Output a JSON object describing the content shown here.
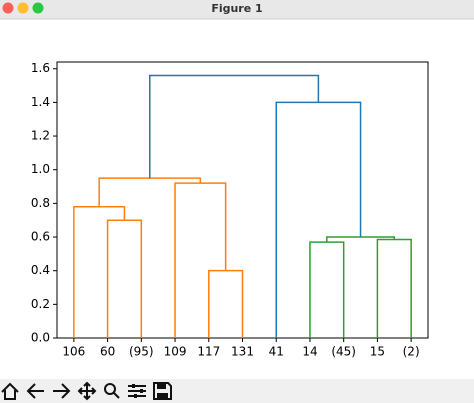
{
  "window_title": "Figure 1",
  "chart_data": {
    "type": "dendrogram",
    "categories": [
      "106",
      "60",
      "(95)",
      "109",
      "117",
      "131",
      "41",
      "14",
      "(45)",
      "15",
      "(2)"
    ],
    "links": [
      {
        "children": [
          4,
          5
        ],
        "height": 0.4,
        "color": "#ff7f0e"
      },
      {
        "children": [
          1,
          2
        ],
        "height": 0.7,
        "color": "#ff7f0e"
      },
      {
        "children": [
          0,
          12
        ],
        "height": 0.78,
        "color": "#ff7f0e"
      },
      {
        "children": [
          3,
          11
        ],
        "height": 0.92,
        "color": "#ff7f0e"
      },
      {
        "children": [
          13,
          14
        ],
        "height": 0.95,
        "color": "#ff7f0e"
      },
      {
        "children": [
          7,
          8
        ],
        "height": 0.57,
        "color": "#2ca02c"
      },
      {
        "children": [
          9,
          10
        ],
        "height": 0.585,
        "color": "#2ca02c"
      },
      {
        "children": [
          16,
          17
        ],
        "height": 0.6,
        "color": "#2ca02c"
      },
      {
        "children": [
          6,
          18
        ],
        "height": 1.4,
        "color": "#1f77b4"
      },
      {
        "children": [
          15,
          19
        ],
        "height": 1.56,
        "color": "#1f77b4"
      }
    ],
    "ylim": [
      0,
      1.64
    ],
    "yticks": [
      {
        "value": 0,
        "label": "0.0"
      },
      0.2,
      0.4,
      0.6,
      0.8,
      {
        "value": 1,
        "label": "1.0"
      },
      1.2,
      1.4,
      1.6
    ]
  }
}
